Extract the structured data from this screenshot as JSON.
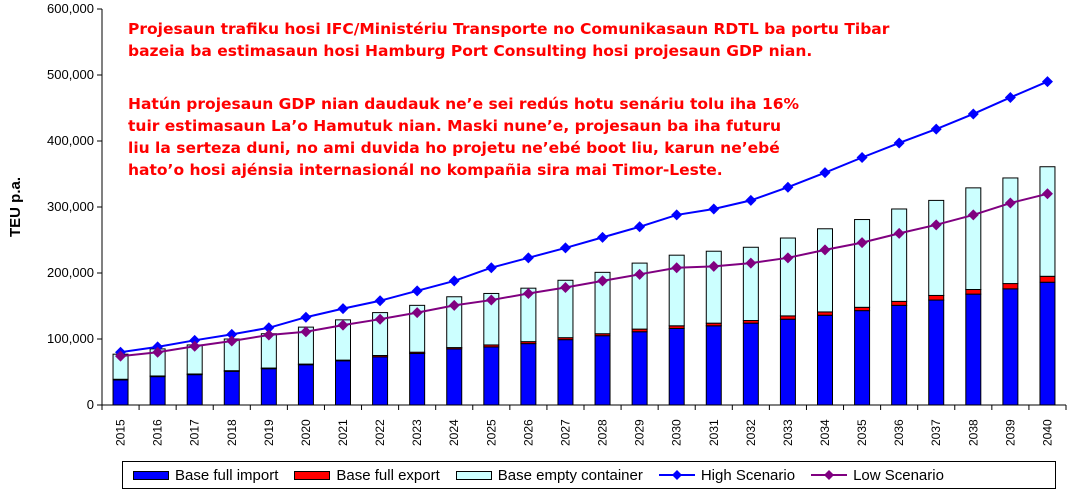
{
  "annotation": {
    "p1_lines": [
      "Projesaun trafiku hosi IFC/Ministériu Transporte no Comunikasaun RDTL ba portu Tibar",
      "bazeia ba estimasaun hosi Hamburg Port Consulting hosi projesaun GDP nian."
    ],
    "p2_lines": [
      "Hatún projesaun GDP nian daudauk ne’e sei redús hotu senáriu tolu iha 16%",
      "tuir estimasaun La’o Hamutuk nian. Maski nune’e, projesaun ba iha futuru",
      "liu la serteza duni, no ami duvida ho projetu ne’ebé boot liu, karun ne’ebé",
      "hato’o hosi ajénsia internasionál no kompañia sira mai Timor-Leste."
    ]
  },
  "colors": {
    "import": "#0000ff",
    "export": "#ff0000",
    "empty": "#ccffff",
    "high": "#0000ff",
    "low": "#800080"
  },
  "chart_data": {
    "type": "bar",
    "ylabel": "TEU p.a.",
    "ylim": [
      0,
      600000
    ],
    "yticks": [
      "0",
      "100,000",
      "200,000",
      "300,000",
      "400,000",
      "500,000",
      "600,000"
    ],
    "grid": false,
    "legend_position": "bottom",
    "categories": [
      "2015",
      "2016",
      "2017",
      "2018",
      "2019",
      "2020",
      "2021",
      "2022",
      "2023",
      "2024",
      "2025",
      "2026",
      "2027",
      "2028",
      "2029",
      "2030",
      "2031",
      "2032",
      "2033",
      "2034",
      "2035",
      "2036",
      "2037",
      "2038",
      "2039",
      "2040"
    ],
    "series": [
      {
        "name": "Base full import",
        "kind": "stacked-bar",
        "values": [
          38000,
          43000,
          46000,
          51000,
          55000,
          61000,
          67000,
          73000,
          78000,
          85000,
          88000,
          93000,
          99000,
          105000,
          111000,
          116000,
          120000,
          124000,
          130000,
          136000,
          143000,
          151000,
          159000,
          168000,
          176000,
          186000
        ]
      },
      {
        "name": "Base full export",
        "kind": "stacked-bar",
        "values": [
          1000,
          1000,
          1000,
          1000,
          1000,
          1000,
          1000,
          2000,
          2000,
          2000,
          3000,
          3000,
          3000,
          3000,
          4000,
          4000,
          4000,
          4000,
          5000,
          5000,
          5000,
          6000,
          7000,
          7000,
          8000,
          9000
        ]
      },
      {
        "name": "Base empty container",
        "kind": "stacked-bar",
        "values": [
          38000,
          41000,
          44000,
          48000,
          52000,
          56000,
          61000,
          65000,
          71000,
          77000,
          78000,
          81000,
          87000,
          93000,
          100000,
          107000,
          109000,
          111000,
          118000,
          126000,
          133000,
          140000,
          144000,
          154000,
          160000,
          166000
        ]
      },
      {
        "name": "High Scenario",
        "kind": "line",
        "values": [
          80000,
          88000,
          98000,
          107000,
          117000,
          133000,
          146000,
          158000,
          173000,
          188000,
          208000,
          223000,
          238000,
          254000,
          270000,
          288000,
          297000,
          310000,
          330000,
          352000,
          375000,
          397000,
          418000,
          441000,
          466000,
          490000
        ]
      },
      {
        "name": "Low Scenario",
        "kind": "line",
        "values": [
          74000,
          80000,
          89000,
          97000,
          106000,
          111000,
          121000,
          130000,
          140000,
          151000,
          159000,
          169000,
          178000,
          188000,
          198000,
          208000,
          210000,
          215000,
          223000,
          235000,
          246000,
          260000,
          273000,
          288000,
          306000,
          320000
        ]
      }
    ]
  }
}
